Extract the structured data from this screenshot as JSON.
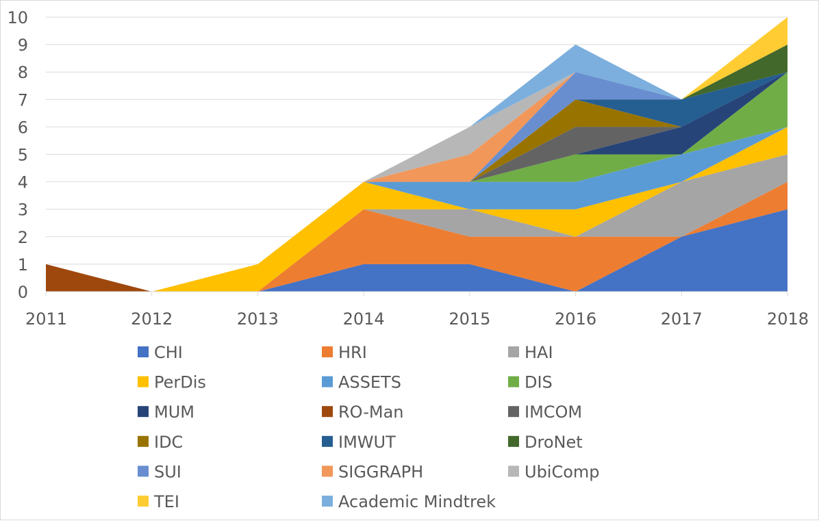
{
  "chart_data": {
    "type": "area",
    "stacked": true,
    "title": "",
    "xlabel": "",
    "ylabel": "",
    "x": [
      "2011",
      "2012",
      "2013",
      "2014",
      "2015",
      "2016",
      "2017",
      "2018"
    ],
    "ylim": [
      0,
      10
    ],
    "yticks": [
      "0",
      "1",
      "2",
      "3",
      "4",
      "5",
      "6",
      "7",
      "8",
      "9",
      "10"
    ],
    "grid": true,
    "legend_position": "bottom",
    "series": [
      {
        "name": "CHI",
        "color": "#4472c4",
        "values": [
          0,
          0,
          0,
          1,
          1,
          0,
          2,
          3
        ]
      },
      {
        "name": "HRI",
        "color": "#ed7d31",
        "values": [
          0,
          0,
          0,
          2,
          1,
          2,
          0,
          1
        ]
      },
      {
        "name": "HAI",
        "color": "#a5a5a5",
        "values": [
          0,
          0,
          0,
          0,
          1,
          0,
          2,
          1
        ]
      },
      {
        "name": "PerDis",
        "color": "#ffc000",
        "values": [
          0,
          0,
          1,
          1,
          0,
          1,
          0,
          1
        ]
      },
      {
        "name": "ASSETS",
        "color": "#5b9bd5",
        "values": [
          0,
          0,
          0,
          0,
          1,
          1,
          1,
          0
        ]
      },
      {
        "name": "DIS",
        "color": "#70ad47",
        "values": [
          0,
          0,
          0,
          0,
          0,
          1,
          0,
          2
        ]
      },
      {
        "name": "MUM",
        "color": "#264478",
        "values": [
          0,
          0,
          0,
          0,
          0,
          0,
          1,
          0
        ]
      },
      {
        "name": "RO-Man",
        "color": "#9e480e",
        "values": [
          1,
          0,
          0,
          0,
          0,
          0,
          0,
          0
        ]
      },
      {
        "name": "IMCOM",
        "color": "#636363",
        "values": [
          0,
          0,
          0,
          0,
          0,
          1,
          0,
          0
        ]
      },
      {
        "name": "IDC",
        "color": "#997300",
        "values": [
          0,
          0,
          0,
          0,
          0,
          1,
          0,
          0
        ]
      },
      {
        "name": "IMWUT",
        "color": "#255e91",
        "values": [
          0,
          0,
          0,
          0,
          0,
          0,
          1,
          0
        ]
      },
      {
        "name": "DroNet",
        "color": "#43682b",
        "values": [
          0,
          0,
          0,
          0,
          0,
          0,
          0,
          1
        ]
      },
      {
        "name": "SUI",
        "color": "#698ed0",
        "values": [
          0,
          0,
          0,
          0,
          0,
          1,
          0,
          0
        ]
      },
      {
        "name": "SIGGRAPH",
        "color": "#f1975a",
        "values": [
          0,
          0,
          0,
          0,
          1,
          0,
          0,
          0
        ]
      },
      {
        "name": "UbiComp",
        "color": "#b7b7b7",
        "values": [
          0,
          0,
          0,
          0,
          1,
          0,
          0,
          0
        ]
      },
      {
        "name": "TEI",
        "color": "#ffcd33",
        "values": [
          0,
          0,
          0,
          0,
          0,
          0,
          0,
          1
        ]
      },
      {
        "name": "Academic Mindtrek",
        "color": "#7cafdd",
        "values": [
          0,
          0,
          0,
          0,
          0,
          1,
          0,
          0
        ]
      }
    ]
  }
}
